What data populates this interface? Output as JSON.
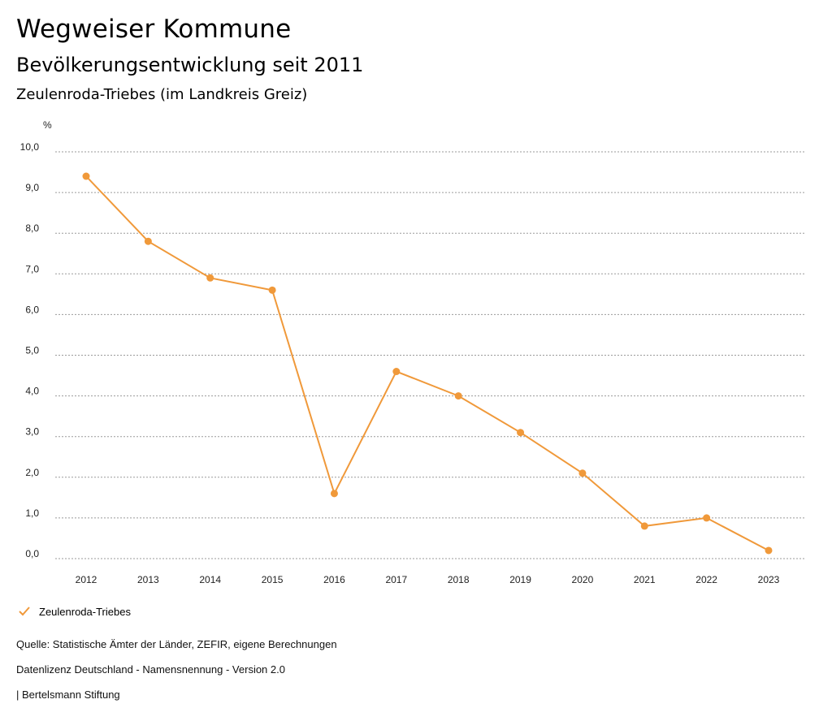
{
  "header": {
    "title": "Wegweiser Kommune",
    "subtitle": "Bevölkerungsentwicklung seit 2011",
    "region": "Zeulenroda-Triebes (im Landkreis Greiz)"
  },
  "chart_data": {
    "type": "line",
    "title": "Bevölkerungsentwicklung seit 2011",
    "ylabel": "%",
    "xlabel": "",
    "categories": [
      "2012",
      "2013",
      "2014",
      "2015",
      "2016",
      "2017",
      "2018",
      "2019",
      "2020",
      "2021",
      "2022",
      "2023"
    ],
    "series": [
      {
        "name": "Zeulenroda-Triebes",
        "values": [
          9.4,
          7.8,
          6.9,
          6.6,
          1.6,
          4.6,
          4.0,
          3.1,
          2.1,
          0.8,
          1.0,
          0.2
        ]
      }
    ],
    "ylim": [
      0,
      10
    ],
    "yticks": [
      "0,0",
      "1,0",
      "2,0",
      "3,0",
      "4,0",
      "5,0",
      "6,0",
      "7,0",
      "8,0",
      "9,0",
      "10,0"
    ],
    "grid": true,
    "legend_position": "bottom-left",
    "color": "#f0993a"
  },
  "legend": {
    "label": "Zeulenroda-Triebes"
  },
  "footer": {
    "source": "Quelle: Statistische Ämter der Länder, ZEFIR, eigene Berechnungen",
    "license": "Datenlizenz Deutschland - Namensnennung - Version 2.0",
    "publisher": "| Bertelsmann Stiftung"
  }
}
